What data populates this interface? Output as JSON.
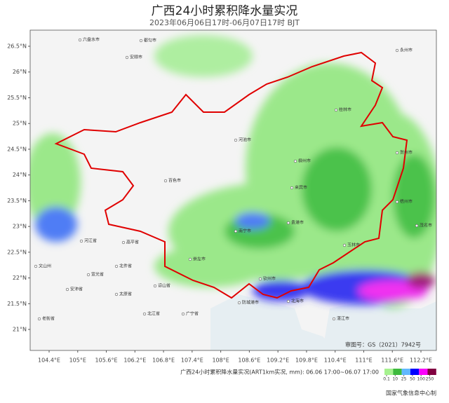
{
  "title": "广西24小时累积降水量实况",
  "subtitle": "2023年06月06日17时-06月07日17时 BJT",
  "lat_ticks": [
    {
      "value": 26.5,
      "label": "26.5°N"
    },
    {
      "value": 26,
      "label": "26°N"
    },
    {
      "value": 25.5,
      "label": "25.5°N"
    },
    {
      "value": 25,
      "label": "25°N"
    },
    {
      "value": 24.5,
      "label": "24.5°N"
    },
    {
      "value": 24,
      "label": "24°N"
    },
    {
      "value": 23.5,
      "label": "23.5°N"
    },
    {
      "value": 23,
      "label": "23°N"
    },
    {
      "value": 22.5,
      "label": "22.5°N"
    },
    {
      "value": 22,
      "label": "22°N"
    },
    {
      "value": 21.5,
      "label": "21.5°N"
    },
    {
      "value": 21,
      "label": "21°N"
    }
  ],
  "lon_ticks": [
    {
      "value": 104.4,
      "label": "104.4°E"
    },
    {
      "value": 105,
      "label": "105°E"
    },
    {
      "value": 105.6,
      "label": "105.6°E"
    },
    {
      "value": 106.2,
      "label": "106.2°E"
    },
    {
      "value": 106.8,
      "label": "106.8°E"
    },
    {
      "value": 107.4,
      "label": "107.4°E"
    },
    {
      "value": 108,
      "label": "108°E"
    },
    {
      "value": 108.6,
      "label": "108.6°E"
    },
    {
      "value": 109.2,
      "label": "109.2°E"
    },
    {
      "value": 109.8,
      "label": "109.8°E"
    },
    {
      "value": 110.4,
      "label": "110.4°E"
    },
    {
      "value": 111,
      "label": "111°E"
    },
    {
      "value": 111.6,
      "label": "111.6°E"
    },
    {
      "value": 112.2,
      "label": "112.2°E"
    }
  ],
  "places": [
    "六盘水市",
    "安顺市",
    "都匀市",
    "永州市",
    "桂林市",
    "河池市",
    "柳州市",
    "贺州市",
    "来宾市",
    "百色市",
    "梧州市",
    "南宁市",
    "贵港市",
    "玉林市",
    "崇左市",
    "钦州市",
    "北海市",
    "防城港市",
    "湛江市",
    "茂名市",
    "河江省",
    "高平省",
    "宣光省",
    "北件省",
    "太原省",
    "谅山省",
    "广宁省",
    "北江省",
    "安沛省",
    "老街省",
    "文山州"
  ],
  "review_number": "审图号：GS（2021）7942号",
  "legend": {
    "caption": "广西24小时累积降水量实况(ART1km实况, mm): 06.06 17:00~06.07 17:00",
    "colors": [
      "#a6f28f",
      "#3dba3d",
      "#61b8ff",
      "#0000fe",
      "#fa00fa",
      "#800040"
    ],
    "ticks": [
      0.1,
      10,
      25,
      50,
      100,
      250
    ]
  },
  "credit": "国家气象信息中心制"
}
